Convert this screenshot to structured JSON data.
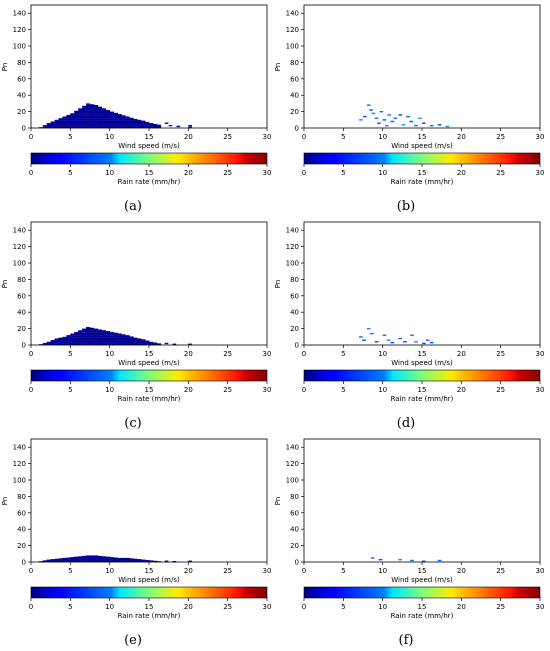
{
  "chart_data": [
    {
      "type": "heatmap",
      "panel": "(a)",
      "xlabel": "Wind speed (m/s)",
      "ylabel": "Pn",
      "xlim": [
        0,
        30
      ],
      "ylim": [
        0,
        150
      ],
      "xticks": [
        "0",
        "5",
        "10",
        "15",
        "20",
        "25",
        "30"
      ],
      "yticks": [
        "0",
        "20",
        "40",
        "60",
        "80",
        "100",
        "120",
        "140"
      ],
      "colorbar": {
        "label": "Rain rate (mm/hr)",
        "range": [
          0,
          30
        ],
        "ticks": [
          "0",
          "5",
          "10",
          "15",
          "20",
          "25",
          "30"
        ],
        "colormap": "jet"
      },
      "profile": [
        [
          1,
          1
        ],
        [
          2,
          6
        ],
        [
          3,
          10
        ],
        [
          4,
          14
        ],
        [
          5,
          18
        ],
        [
          6,
          24
        ],
        [
          7,
          30
        ],
        [
          8,
          28
        ],
        [
          9,
          24
        ],
        [
          10,
          20
        ],
        [
          11,
          17
        ],
        [
          12,
          14
        ],
        [
          13,
          11
        ],
        [
          14,
          9
        ],
        [
          15,
          6
        ],
        [
          16,
          4
        ]
      ],
      "rain_rate": 0.5,
      "sparse_points": [
        [
          17,
          6,
          2
        ],
        [
          17.5,
          3,
          2
        ],
        [
          18.5,
          2,
          2
        ],
        [
          20,
          1,
          2
        ],
        [
          20,
          3,
          2
        ]
      ]
    },
    {
      "type": "heatmap",
      "panel": "(b)",
      "xlabel": "Wind speed (m/s)",
      "ylabel": "Pn",
      "xlim": [
        0,
        30
      ],
      "ylim": [
        0,
        150
      ],
      "xticks": [
        "0",
        "5",
        "10",
        "15",
        "20",
        "25",
        "30"
      ],
      "yticks": [
        "0",
        "20",
        "40",
        "60",
        "80",
        "100",
        "120",
        "140"
      ],
      "colorbar": {
        "label": "Rain rate (mm/hr)",
        "range": [
          0,
          30
        ],
        "ticks": [
          "0",
          "5",
          "10",
          "15",
          "20",
          "25",
          "30"
        ],
        "colormap": "jet"
      },
      "profile": [],
      "rain_rate": 7,
      "sparse_points": [
        [
          7,
          10,
          8
        ],
        [
          7.5,
          14,
          6
        ],
        [
          8,
          28,
          7
        ],
        [
          8.3,
          22,
          6
        ],
        [
          8.6,
          18,
          8
        ],
        [
          9,
          12,
          7
        ],
        [
          9.3,
          6,
          6
        ],
        [
          9.6,
          20,
          7
        ],
        [
          10,
          10,
          6
        ],
        [
          10.3,
          3,
          8
        ],
        [
          10.6,
          16,
          7
        ],
        [
          11,
          8,
          6
        ],
        [
          11.4,
          12,
          7
        ],
        [
          12,
          16,
          6
        ],
        [
          12.4,
          4,
          8
        ],
        [
          13,
          14,
          7
        ],
        [
          13.4,
          8,
          6
        ],
        [
          14,
          3,
          7
        ],
        [
          14.5,
          12,
          8
        ],
        [
          15,
          6,
          6
        ],
        [
          16,
          3,
          7
        ],
        [
          17,
          4,
          6
        ],
        [
          18,
          2,
          8
        ]
      ]
    },
    {
      "type": "heatmap",
      "panel": "(c)",
      "xlabel": "Wind speed (m/s)",
      "ylabel": "Pn",
      "xlim": [
        0,
        30
      ],
      "ylim": [
        0,
        150
      ],
      "xticks": [
        "0",
        "5",
        "10",
        "15",
        "20",
        "25",
        "30"
      ],
      "yticks": [
        "0",
        "20",
        "40",
        "60",
        "80",
        "100",
        "120",
        "140"
      ],
      "colorbar": {
        "label": "Rain rate (mm/hr)",
        "range": [
          0,
          30
        ],
        "ticks": [
          "0",
          "5",
          "10",
          "15",
          "20",
          "25",
          "30"
        ],
        "colormap": "jet"
      },
      "profile": [
        [
          1,
          1
        ],
        [
          2,
          4
        ],
        [
          3,
          8
        ],
        [
          4,
          10
        ],
        [
          5,
          14
        ],
        [
          6,
          18
        ],
        [
          7,
          22
        ],
        [
          8,
          20
        ],
        [
          9,
          18
        ],
        [
          10,
          16
        ],
        [
          11,
          14
        ],
        [
          12,
          12
        ],
        [
          13,
          9
        ],
        [
          14,
          7
        ],
        [
          15,
          4
        ],
        [
          16,
          2
        ]
      ],
      "rain_rate": 0.5,
      "sparse_points": [
        [
          17,
          2,
          2
        ],
        [
          18,
          1,
          2
        ],
        [
          20,
          1,
          2
        ]
      ]
    },
    {
      "type": "heatmap",
      "panel": "(d)",
      "xlabel": "Wind speed (m/s)",
      "ylabel": "Pn",
      "xlim": [
        0,
        30
      ],
      "ylim": [
        0,
        150
      ],
      "xticks": [
        "0",
        "5",
        "10",
        "15",
        "20",
        "25",
        "30"
      ],
      "yticks": [
        "0",
        "20",
        "40",
        "60",
        "80",
        "100",
        "120",
        "140"
      ],
      "colorbar": {
        "label": "Rain rate (mm/hr)",
        "range": [
          0,
          30
        ],
        "ticks": [
          "0",
          "5",
          "10",
          "15",
          "20",
          "25",
          "30"
        ],
        "colormap": "jet"
      },
      "profile": [],
      "rain_rate": 7,
      "sparse_points": [
        [
          7,
          10,
          7
        ],
        [
          7.4,
          6,
          6
        ],
        [
          8,
          20,
          8
        ],
        [
          8.4,
          14,
          7
        ],
        [
          9,
          4,
          6
        ],
        [
          10,
          12,
          7
        ],
        [
          10.5,
          6,
          8
        ],
        [
          11,
          3,
          6
        ],
        [
          12,
          8,
          7
        ],
        [
          12.6,
          4,
          6
        ],
        [
          13.5,
          12,
          7
        ],
        [
          14,
          4,
          8
        ],
        [
          15,
          2,
          6
        ],
        [
          15.5,
          6,
          7
        ],
        [
          16,
          3,
          6
        ]
      ]
    },
    {
      "type": "heatmap",
      "panel": "(e)",
      "xlabel": "Wind speed (m/s)",
      "ylabel": "Pn",
      "xlim": [
        0,
        30
      ],
      "ylim": [
        0,
        150
      ],
      "xticks": [
        "0",
        "5",
        "10",
        "15",
        "20",
        "25",
        "30"
      ],
      "yticks": [
        "0",
        "20",
        "40",
        "60",
        "80",
        "100",
        "120",
        "140"
      ],
      "colorbar": {
        "label": "Rain rate (mm/hr)",
        "range": [
          0,
          30
        ],
        "ticks": [
          "0",
          "5",
          "10",
          "15",
          "20",
          "25",
          "30"
        ],
        "colormap": "jet"
      },
      "profile": [
        [
          1,
          1
        ],
        [
          2,
          3
        ],
        [
          3,
          4
        ],
        [
          4,
          5
        ],
        [
          5,
          6
        ],
        [
          6,
          7
        ],
        [
          7,
          8
        ],
        [
          8,
          8
        ],
        [
          9,
          7
        ],
        [
          10,
          6
        ],
        [
          11,
          5
        ],
        [
          12,
          5
        ],
        [
          13,
          4
        ],
        [
          14,
          3
        ],
        [
          15,
          2
        ],
        [
          16,
          1
        ]
      ],
      "rain_rate": 0.5,
      "sparse_points": [
        [
          17,
          1,
          2
        ],
        [
          18,
          0.5,
          2
        ],
        [
          20,
          1,
          2
        ]
      ]
    },
    {
      "type": "heatmap",
      "panel": "(f)",
      "xlabel": "Wind speed (m/s)",
      "ylabel": "Pn",
      "xlim": [
        0,
        30
      ],
      "ylim": [
        0,
        150
      ],
      "xticks": [
        "0",
        "5",
        "10",
        "15",
        "20",
        "25",
        "30"
      ],
      "yticks": [
        "0",
        "20",
        "40",
        "60",
        "80",
        "100",
        "120",
        "140"
      ],
      "colorbar": {
        "label": "Rain rate (mm/hr)",
        "range": [
          0,
          30
        ],
        "ticks": [
          "0",
          "5",
          "10",
          "15",
          "20",
          "25",
          "30"
        ],
        "colormap": "jet"
      },
      "profile": [],
      "rain_rate": 7,
      "sparse_points": [
        [
          8.5,
          5,
          7
        ],
        [
          9.5,
          3,
          6
        ],
        [
          12,
          3,
          8
        ],
        [
          13.5,
          2,
          7
        ],
        [
          15,
          1,
          6
        ],
        [
          17,
          2,
          7
        ]
      ]
    }
  ]
}
